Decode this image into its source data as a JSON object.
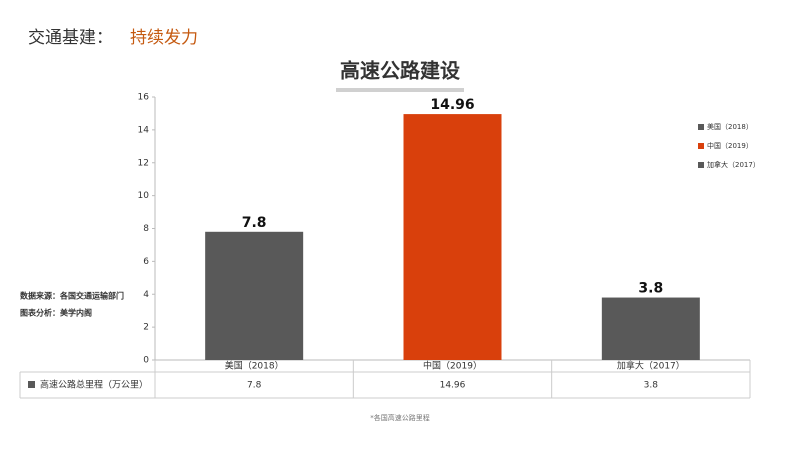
{
  "header": {
    "prefix": "交通基建：",
    "highlight": "持续发力"
  },
  "chart_data": {
    "type": "bar",
    "title": "高速公路建设",
    "categories": [
      "美国（2018）",
      "中国（2019）",
      "加拿大（2017）"
    ],
    "series": [
      {
        "name": "高速公路总里程（万公里）",
        "color": "#595959",
        "colors": [
          "#595959",
          "#d9400c",
          "#595959"
        ],
        "values": [
          7.8,
          14.96,
          3.8
        ]
      }
    ],
    "ylim": [
      0,
      16
    ],
    "yticks": [
      0,
      2,
      4,
      6,
      8,
      10,
      12,
      14,
      16
    ],
    "grid": false,
    "legend": "right",
    "notes": [
      "数据来源：各国交通运输部门",
      "图表分析：美学内阁"
    ],
    "footnote": "*各国高速公路里程"
  }
}
